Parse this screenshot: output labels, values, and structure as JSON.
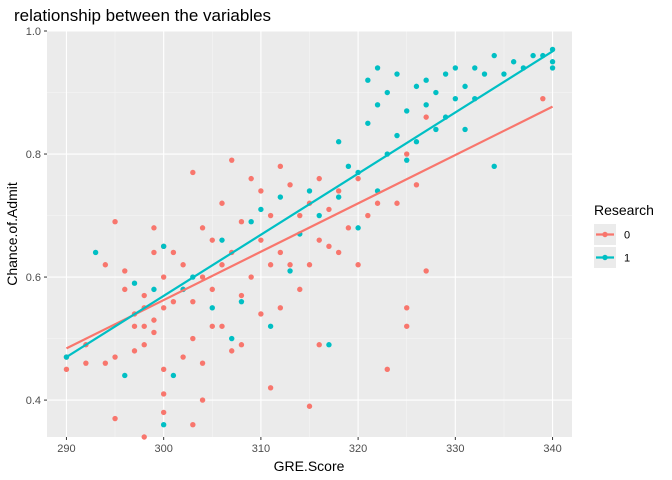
{
  "chart_data": {
    "type": "scatter",
    "title": "relationship between the variables",
    "xlabel": "GRE.Score",
    "ylabel": "Chance.of.Admit",
    "xlim": [
      288,
      342
    ],
    "ylim": [
      0.34,
      1.0
    ],
    "xticks": [
      290,
      300,
      310,
      320,
      330,
      340
    ],
    "yticks": [
      0.4,
      0.6,
      0.8,
      1.0
    ],
    "xtick_labels": [
      "290",
      "300",
      "310",
      "320",
      "330",
      "340"
    ],
    "ytick_labels": [
      "0.4",
      "0.6",
      "0.8",
      "1.0"
    ],
    "grid": true,
    "legend": {
      "title": "Research",
      "position": "right"
    },
    "series": [
      {
        "name": "0",
        "color": "#F8766D",
        "trend": {
          "x": [
            290,
            340
          ],
          "y": [
            0.484,
            0.877
          ]
        },
        "points": [
          [
            290,
            0.45
          ],
          [
            290,
            0.47
          ],
          [
            292,
            0.49
          ],
          [
            292,
            0.46
          ],
          [
            294,
            0.46
          ],
          [
            294,
            0.62
          ],
          [
            295,
            0.37
          ],
          [
            295,
            0.47
          ],
          [
            295,
            0.69
          ],
          [
            296,
            0.58
          ],
          [
            296,
            0.61
          ],
          [
            297,
            0.54
          ],
          [
            297,
            0.52
          ],
          [
            297,
            0.48
          ],
          [
            298,
            0.34
          ],
          [
            298,
            0.49
          ],
          [
            298,
            0.52
          ],
          [
            298,
            0.55
          ],
          [
            298,
            0.57
          ],
          [
            299,
            0.51
          ],
          [
            299,
            0.64
          ],
          [
            299,
            0.68
          ],
          [
            299,
            0.53
          ],
          [
            300,
            0.38
          ],
          [
            300,
            0.41
          ],
          [
            300,
            0.45
          ],
          [
            300,
            0.55
          ],
          [
            300,
            0.6
          ],
          [
            300,
            0.65
          ],
          [
            301,
            0.56
          ],
          [
            301,
            0.64
          ],
          [
            302,
            0.47
          ],
          [
            302,
            0.58
          ],
          [
            302,
            0.62
          ],
          [
            303,
            0.36
          ],
          [
            303,
            0.5
          ],
          [
            303,
            0.56
          ],
          [
            303,
            0.77
          ],
          [
            304,
            0.4
          ],
          [
            304,
            0.46
          ],
          [
            304,
            0.68
          ],
          [
            304,
            0.6
          ],
          [
            305,
            0.52
          ],
          [
            305,
            0.58
          ],
          [
            305,
            0.66
          ],
          [
            306,
            0.52
          ],
          [
            306,
            0.62
          ],
          [
            306,
            0.72
          ],
          [
            307,
            0.48
          ],
          [
            307,
            0.64
          ],
          [
            307,
            0.79
          ],
          [
            308,
            0.49
          ],
          [
            308,
            0.57
          ],
          [
            308,
            0.69
          ],
          [
            309,
            0.6
          ],
          [
            309,
            0.76
          ],
          [
            310,
            0.54
          ],
          [
            310,
            0.66
          ],
          [
            310,
            0.74
          ],
          [
            311,
            0.42
          ],
          [
            311,
            0.62
          ],
          [
            311,
            0.7
          ],
          [
            312,
            0.55
          ],
          [
            312,
            0.64
          ],
          [
            312,
            0.78
          ],
          [
            313,
            0.62
          ],
          [
            313,
            0.75
          ],
          [
            314,
            0.58
          ],
          [
            314,
            0.7
          ],
          [
            315,
            0.39
          ],
          [
            315,
            0.62
          ],
          [
            315,
            0.72
          ],
          [
            316,
            0.49
          ],
          [
            316,
            0.66
          ],
          [
            316,
            0.76
          ],
          [
            317,
            0.65
          ],
          [
            317,
            0.71
          ],
          [
            318,
            0.64
          ],
          [
            318,
            0.74
          ],
          [
            319,
            0.68
          ],
          [
            320,
            0.62
          ],
          [
            320,
            0.76
          ],
          [
            321,
            0.7
          ],
          [
            322,
            0.72
          ],
          [
            323,
            0.45
          ],
          [
            324,
            0.72
          ],
          [
            325,
            0.52
          ],
          [
            325,
            0.55
          ],
          [
            325,
            0.8
          ],
          [
            326,
            0.75
          ],
          [
            327,
            0.61
          ],
          [
            327,
            0.86
          ],
          [
            339,
            0.89
          ]
        ]
      },
      {
        "name": "1",
        "color": "#00BFC4",
        "trend": {
          "x": [
            290,
            340
          ],
          "y": [
            0.47,
            0.967
          ]
        },
        "points": [
          [
            290,
            0.47
          ],
          [
            293,
            0.64
          ],
          [
            296,
            0.44
          ],
          [
            297,
            0.59
          ],
          [
            299,
            0.58
          ],
          [
            300,
            0.36
          ],
          [
            300,
            0.65
          ],
          [
            301,
            0.44
          ],
          [
            302,
            0.58
          ],
          [
            303,
            0.6
          ],
          [
            305,
            0.55
          ],
          [
            306,
            0.66
          ],
          [
            307,
            0.5
          ],
          [
            308,
            0.56
          ],
          [
            309,
            0.69
          ],
          [
            310,
            0.71
          ],
          [
            311,
            0.52
          ],
          [
            312,
            0.73
          ],
          [
            313,
            0.61
          ],
          [
            314,
            0.67
          ],
          [
            315,
            0.74
          ],
          [
            316,
            0.7
          ],
          [
            317,
            0.49
          ],
          [
            318,
            0.73
          ],
          [
            318,
            0.82
          ],
          [
            319,
            0.78
          ],
          [
            320,
            0.68
          ],
          [
            320,
            0.77
          ],
          [
            321,
            0.85
          ],
          [
            321,
            0.92
          ],
          [
            322,
            0.74
          ],
          [
            322,
            0.88
          ],
          [
            322,
            0.94
          ],
          [
            323,
            0.9
          ],
          [
            323,
            0.8
          ],
          [
            324,
            0.83
          ],
          [
            324,
            0.93
          ],
          [
            325,
            0.87
          ],
          [
            325,
            0.79
          ],
          [
            326,
            0.91
          ],
          [
            326,
            0.82
          ],
          [
            327,
            0.88
          ],
          [
            327,
            0.92
          ],
          [
            328,
            0.84
          ],
          [
            328,
            0.9
          ],
          [
            329,
            0.93
          ],
          [
            329,
            0.86
          ],
          [
            330,
            0.94
          ],
          [
            330,
            0.89
          ],
          [
            331,
            0.91
          ],
          [
            331,
            0.84
          ],
          [
            332,
            0.94
          ],
          [
            332,
            0.89
          ],
          [
            333,
            0.93
          ],
          [
            334,
            0.78
          ],
          [
            334,
            0.96
          ],
          [
            335,
            0.93
          ],
          [
            336,
            0.95
          ],
          [
            337,
            0.94
          ],
          [
            338,
            0.96
          ],
          [
            339,
            0.96
          ],
          [
            340,
            0.95
          ],
          [
            340,
            0.97
          ],
          [
            340,
            0.94
          ]
        ]
      }
    ]
  }
}
